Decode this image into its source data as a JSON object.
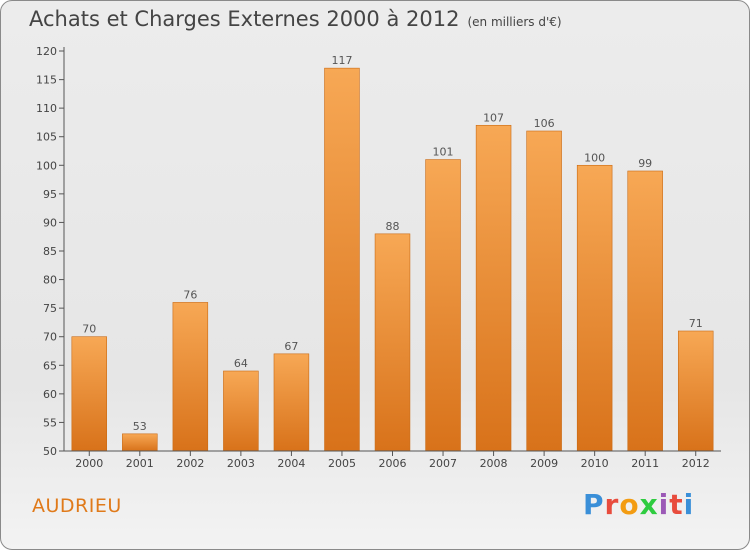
{
  "header": {
    "title": "Achats et Charges Externes 2000 à 2012",
    "subtitle": "(en milliers d'€)"
  },
  "footer": {
    "commune": "AUDRIEU",
    "brand": "Proxiti",
    "brand_colors": [
      "#3a8fd8",
      "#e84c3d",
      "#f39c12",
      "#2ecc40",
      "#9b59b6",
      "#e84c3d",
      "#3a8fd8"
    ]
  },
  "chart_data": {
    "type": "bar",
    "title": "Achats et Charges Externes 2000 à 2012",
    "subtitle": "(en milliers d'€)",
    "categories": [
      "2000",
      "2001",
      "2002",
      "2003",
      "2004",
      "2005",
      "2006",
      "2007",
      "2008",
      "2009",
      "2010",
      "2011",
      "2012"
    ],
    "values": [
      70,
      53,
      76,
      64,
      67,
      117,
      88,
      101,
      107,
      106,
      100,
      99,
      71
    ],
    "ylim": [
      50,
      120
    ],
    "yticks": [
      50,
      55,
      60,
      65,
      70,
      75,
      80,
      85,
      90,
      95,
      100,
      105,
      110,
      115,
      120
    ],
    "grid": false,
    "bar_color": "#f0902e",
    "bar_color_light": "#f7a855",
    "bar_color_dark": "#d8721a"
  }
}
